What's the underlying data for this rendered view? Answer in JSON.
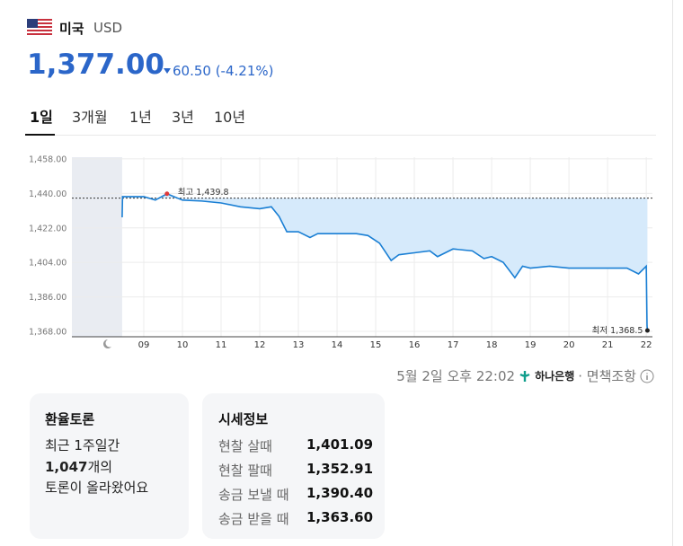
{
  "header": {
    "country": "미국",
    "currency": "USD",
    "price": "1,377.00",
    "change": "60.50 (-4.21%)"
  },
  "tabs": [
    "1일",
    "3개월",
    "1년",
    "3년",
    "10년"
  ],
  "chart_data": {
    "type": "line",
    "x": [
      8.44,
      8.45,
      9.0,
      9.3,
      9.6,
      10.0,
      10.5,
      11.0,
      11.5,
      12.0,
      12.3,
      12.5,
      12.7,
      13.0,
      13.3,
      13.5,
      14.0,
      14.5,
      14.8,
      15.1,
      15.4,
      15.6,
      16.0,
      16.4,
      16.6,
      17.0,
      17.5,
      17.8,
      18.0,
      18.3,
      18.6,
      18.8,
      19.0,
      19.5,
      20.0,
      20.5,
      21.0,
      21.5,
      21.8,
      22.0,
      22.02,
      22.03
    ],
    "values": [
      1427.5,
      1438.3,
      1438.3,
      1436.5,
      1439.8,
      1436.5,
      1436,
      1435,
      1433,
      1432,
      1433,
      1428,
      1420,
      1420,
      1417,
      1419,
      1419,
      1419,
      1418,
      1414,
      1405,
      1408,
      1409,
      1410,
      1407,
      1411,
      1410,
      1406,
      1407,
      1404,
      1396,
      1402,
      1401,
      1402,
      1401,
      1401,
      1401,
      1401,
      1398,
      1402,
      1371,
      1368.5
    ],
    "color": "#1a7fd4",
    "area_color": "#d6eafb",
    "baseline": 1437.5,
    "closed_range": [
      7.14,
      8.44
    ],
    "xlim": [
      7.14,
      22.16
    ],
    "ylim": [
      1365.2,
      1458.9
    ],
    "xticks": [
      {
        "value": 9,
        "label": "09"
      },
      10,
      11,
      12,
      13,
      14,
      15,
      16,
      17,
      18,
      19,
      20,
      21,
      22
    ],
    "yticks": [
      {
        "value": 1368,
        "label": "1,368.00"
      },
      {
        "value": 1386,
        "label": "1,386.00"
      },
      {
        "value": 1404,
        "label": "1,404.00"
      },
      {
        "value": 1422,
        "label": "1,422.00"
      },
      {
        "value": 1440,
        "label": "1,440.00"
      },
      {
        "value": 1458,
        "label": "1,458.00"
      }
    ],
    "grid": true,
    "annotations": [
      {
        "label": "최고 1,439.8",
        "x": 9.6,
        "value": 1439.8,
        "color": "#e03a3a"
      },
      {
        "label": "최저 1,368.5",
        "x": 22.03,
        "value": 1368.5,
        "color": "#222222"
      }
    ]
  },
  "footer": {
    "timestamp": "5월 2일 오후 22:02",
    "bank": "하나은행",
    "disclaimer": "· 면책조항"
  },
  "discussion": {
    "title": "환율토론",
    "line1": "최근 1주일간",
    "count": "1,047",
    "count_suffix": "개의",
    "line3": "토론이 올라왔어요"
  },
  "quote": {
    "title": "시세정보",
    "rows": [
      [
        "현찰 살때",
        "1,401.09"
      ],
      [
        "현찰 팔때",
        "1,352.91"
      ],
      [
        "송금 보낼 때",
        "1,390.40"
      ],
      [
        "송금 받을 때",
        "1,363.60"
      ]
    ]
  }
}
